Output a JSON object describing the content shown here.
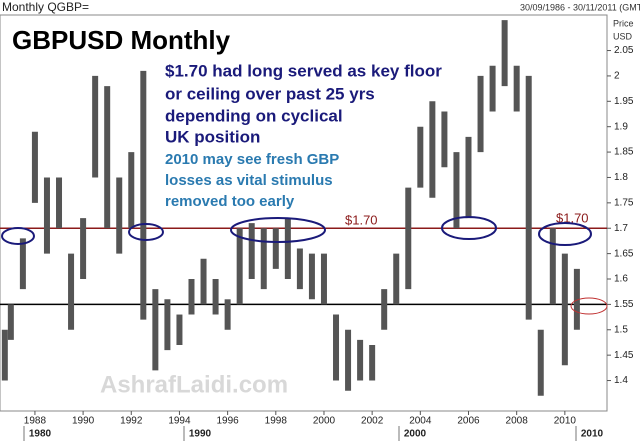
{
  "chart_data": {
    "type": "range-bar",
    "header": "Monthly QGBP=",
    "date_range": "30/09/1986 - 30/11/2011 (GMT",
    "axis_label_top": "Price",
    "axis_label_bottom": "USD",
    "title": "GBPUSD Monthly",
    "annotation_main": [
      "$1.70 had long served as key floor",
      "or ceiling over past 25 yrs",
      "depending on cyclical",
      "UK position"
    ],
    "annotation_second": [
      "2010 may see fresh GBP",
      "losses as vital stimulus",
      "removed too early"
    ],
    "level_labels": [
      "$1.70",
      "$1.70"
    ],
    "watermark": "AshrafLaidi.com",
    "decade_labels": [
      "1980",
      "1990",
      "2000",
      "2010"
    ],
    "color": "#555555",
    "x": [
      1986.75,
      1987.0,
      1987.5,
      1988.0,
      1988.5,
      1989.0,
      1989.5,
      1990.0,
      1990.5,
      1991.0,
      1991.5,
      1992.0,
      1992.5,
      1993.0,
      1993.5,
      1994.0,
      1994.5,
      1995.0,
      1995.5,
      1996.0,
      1996.5,
      1997.0,
      1997.5,
      1998.0,
      1998.5,
      1999.0,
      1999.5,
      2000.0,
      2000.5,
      2001.0,
      2001.5,
      2002.0,
      2002.5,
      2003.0,
      2003.5,
      2004.0,
      2004.5,
      2005.0,
      2005.5,
      2006.0,
      2006.5,
      2007.0,
      2007.5,
      2008.0,
      2008.5,
      2009.0,
      2009.5,
      2010.0,
      2010.5
    ],
    "high": [
      1.5,
      1.55,
      1.68,
      1.89,
      1.8,
      1.8,
      1.65,
      1.72,
      2.0,
      1.98,
      1.8,
      1.85,
      2.01,
      1.58,
      1.56,
      1.53,
      1.6,
      1.64,
      1.6,
      1.56,
      1.7,
      1.71,
      1.7,
      1.7,
      1.72,
      1.66,
      1.65,
      1.65,
      1.53,
      1.5,
      1.48,
      1.47,
      1.58,
      1.65,
      1.78,
      1.9,
      1.95,
      1.93,
      1.85,
      1.88,
      2.0,
      2.02,
      2.11,
      2.02,
      2.0,
      1.5,
      1.7,
      1.65,
      1.62
    ],
    "low": [
      1.4,
      1.48,
      1.58,
      1.75,
      1.65,
      1.7,
      1.5,
      1.6,
      1.8,
      1.7,
      1.65,
      1.7,
      1.52,
      1.42,
      1.46,
      1.47,
      1.53,
      1.55,
      1.53,
      1.5,
      1.55,
      1.6,
      1.58,
      1.62,
      1.6,
      1.58,
      1.56,
      1.55,
      1.4,
      1.38,
      1.4,
      1.4,
      1.5,
      1.55,
      1.58,
      1.78,
      1.76,
      1.82,
      1.7,
      1.72,
      1.85,
      1.93,
      1.98,
      1.93,
      1.52,
      1.37,
      1.55,
      1.43,
      1.5
    ],
    "xlim": [
      1986.55,
      2011.75
    ],
    "xticks": [
      1988,
      1990,
      1992,
      1994,
      1996,
      1998,
      2000,
      2002,
      2004,
      2006,
      2008,
      2010
    ],
    "ylim": [
      1.34,
      2.12
    ],
    "yticks": [
      1.4,
      1.45,
      1.5,
      1.55,
      1.6,
      1.65,
      1.7,
      1.75,
      1.8,
      1.85,
      1.9,
      1.95,
      2,
      2.05
    ],
    "hlines": [
      {
        "value": 1.7,
        "color": "#8b1a1a"
      },
      {
        "value": 1.55,
        "color": "#000000"
      }
    ]
  }
}
